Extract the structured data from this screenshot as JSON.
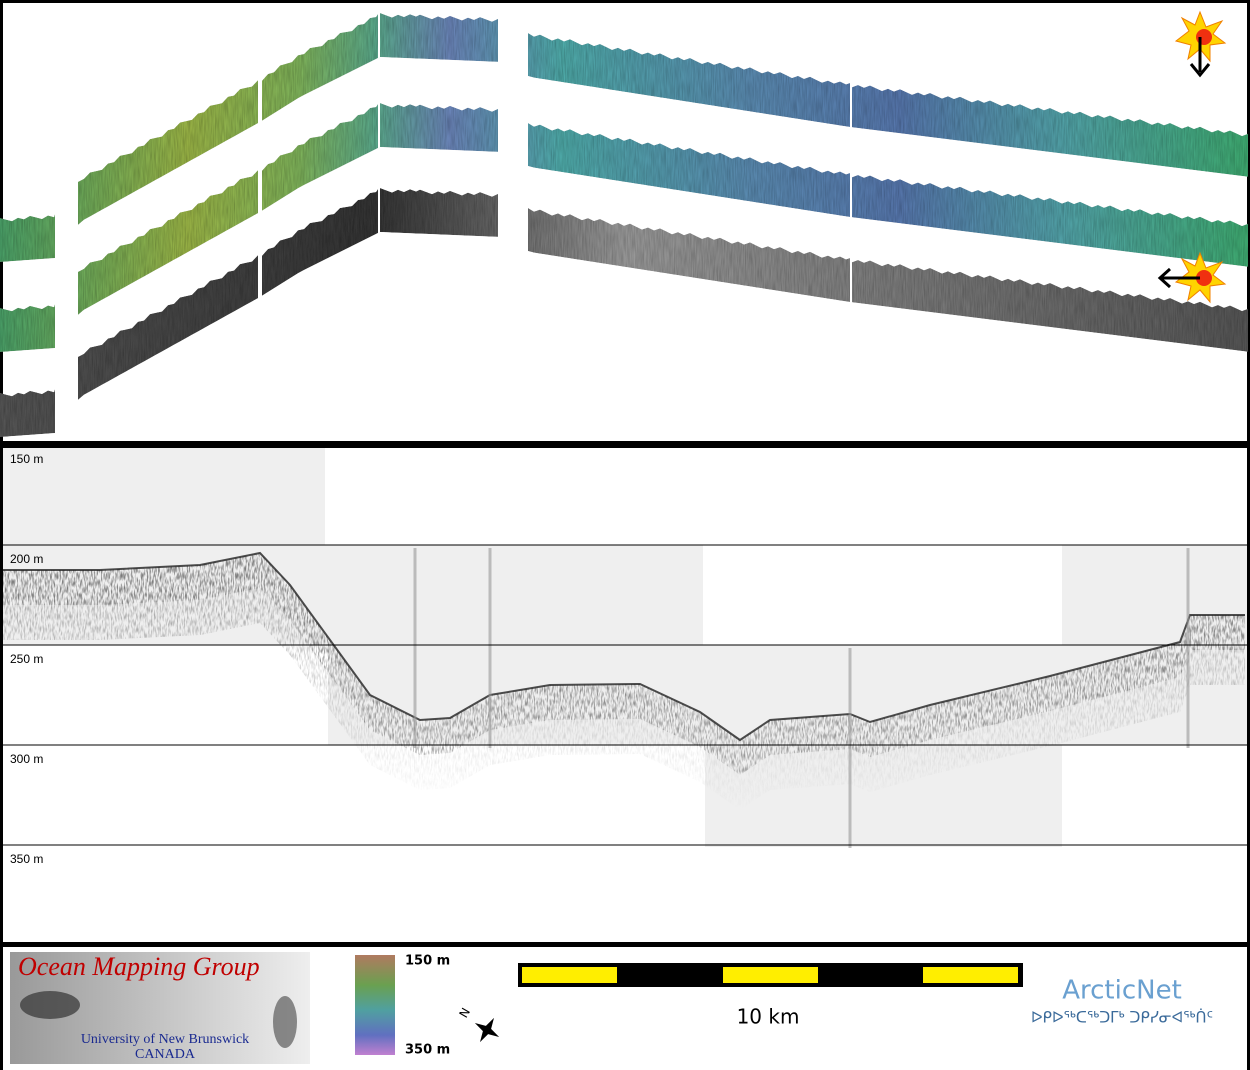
{
  "depth_profile": {
    "depth_labels": [
      "150 m",
      "200 m",
      "250 m",
      "300 m",
      "350 m"
    ]
  },
  "legend": {
    "logo": {
      "title": "Ocean Mapping Group",
      "university": "University of New Brunswick",
      "country": "CANADA"
    },
    "colorbar": {
      "top_label": "150 m",
      "bottom_label": "350 m"
    },
    "scale_bar": {
      "label": "10 km"
    },
    "compass": {
      "label": "N"
    },
    "partner": {
      "name": "ArcticNet",
      "subtitle": "ᐅᑭᐅᖅᑕᖅᑐᒥᒃ ᑐᑭᓯᓂᐊᖅᑏᑦ"
    }
  }
}
